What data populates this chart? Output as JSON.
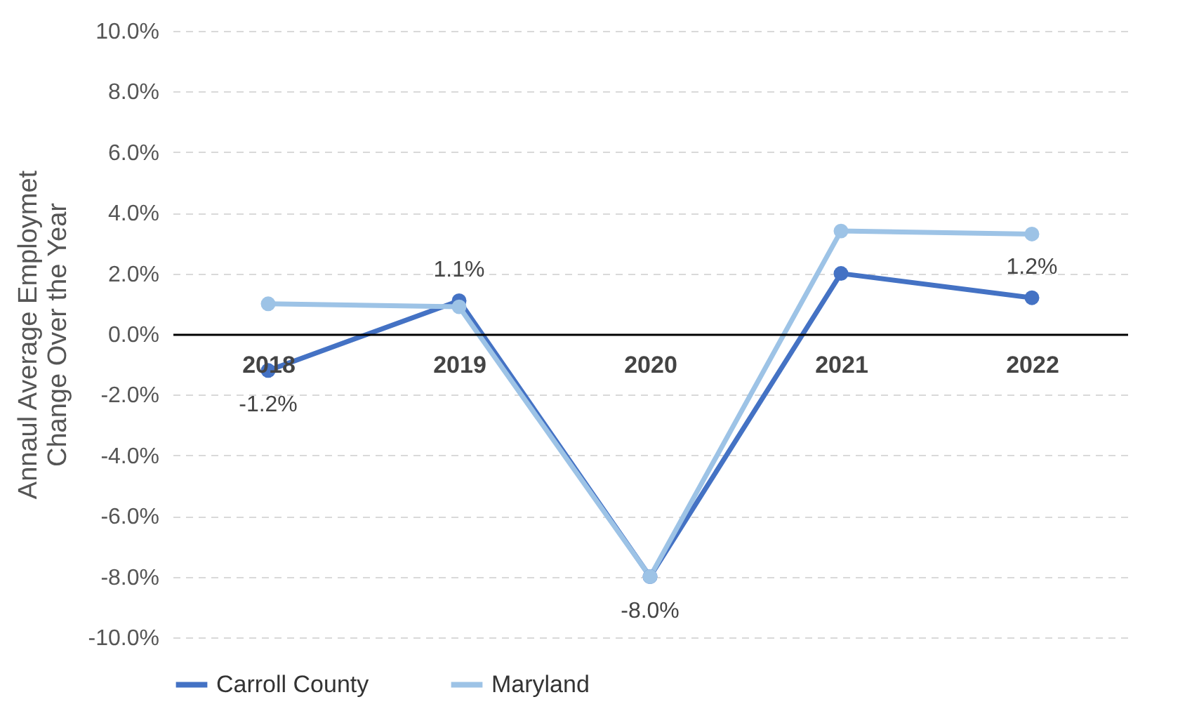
{
  "chart_data": {
    "type": "line",
    "ylabel": "Annaul Average Employmet Change Over the Year",
    "categories": [
      "2018",
      "2019",
      "2020",
      "2021",
      "2022"
    ],
    "series": [
      {
        "name": "Carroll County",
        "color": "#4472c4",
        "values": [
          -1.2,
          1.1,
          -8.0,
          2.0,
          1.2
        ],
        "value_labels": [
          "-1.2%",
          "1.1%",
          "-8.0%",
          null,
          "1.2%"
        ]
      },
      {
        "name": "Maryland",
        "color": "#9dc3e6",
        "values": [
          1.0,
          0.9,
          -8.0,
          3.4,
          3.3
        ]
      }
    ],
    "ylim": [
      -10,
      10
    ],
    "yticks": [
      {
        "value": -10,
        "label": "-10.0%"
      },
      {
        "value": -8,
        "label": "-8.0%"
      },
      {
        "value": -6,
        "label": "-6.0%"
      },
      {
        "value": -4,
        "label": "-4.0%"
      },
      {
        "value": -2,
        "label": "-2.0%"
      },
      {
        "value": 0,
        "label": "0.0%"
      },
      {
        "value": 2,
        "label": "2.0%"
      },
      {
        "value": 4,
        "label": "4.0%"
      },
      {
        "value": 6,
        "label": "6.0%"
      },
      {
        "value": 8,
        "label": "8.0%"
      },
      {
        "value": 10,
        "label": "10.0%"
      }
    ],
    "grid": "y",
    "legend": "bottom",
    "marker": "circle",
    "line_style": "solid"
  }
}
